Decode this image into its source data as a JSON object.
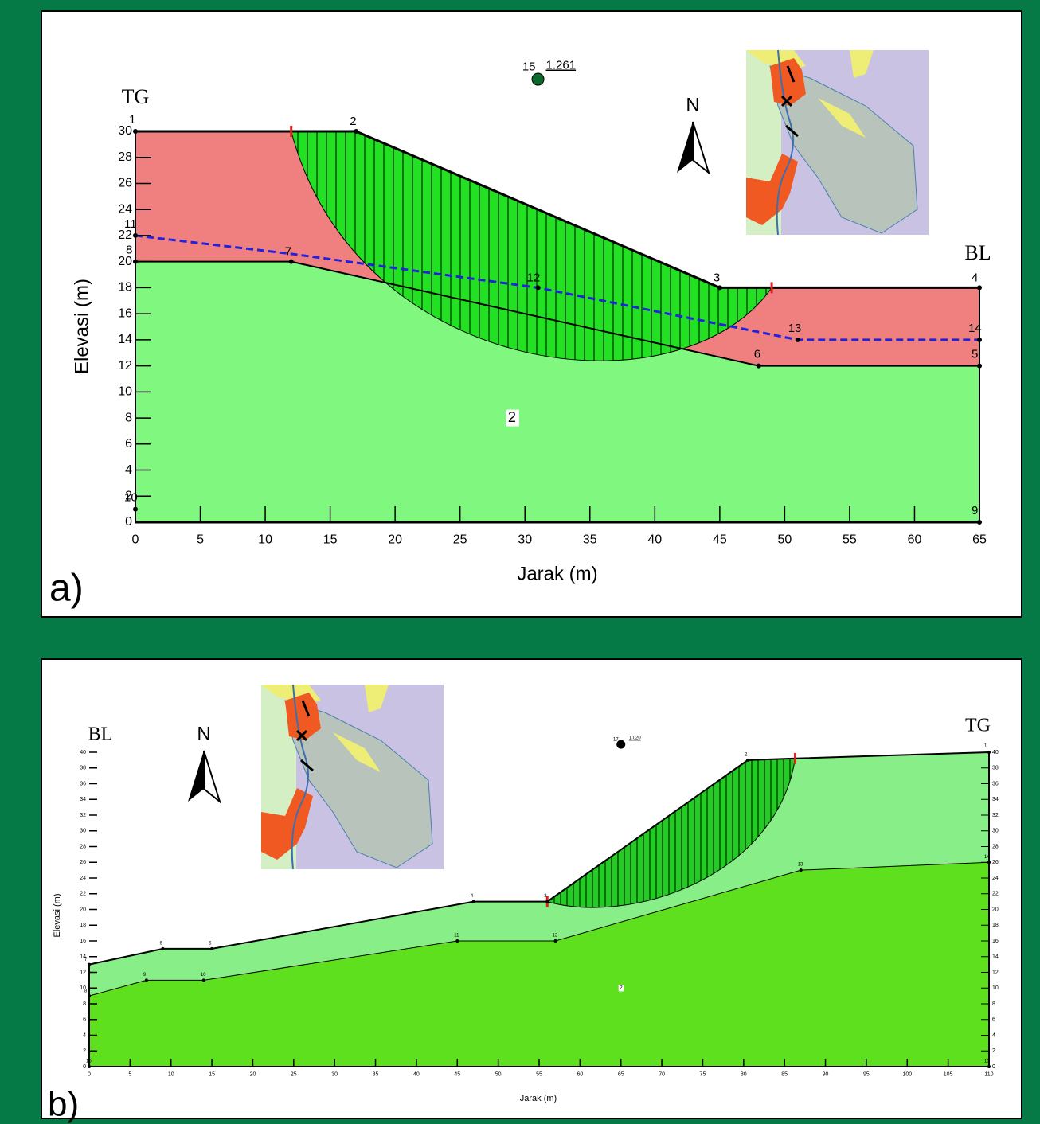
{
  "panels": [
    {
      "label": "a)",
      "left_label": "TG",
      "right_label": "BL",
      "north": "N",
      "x_axis_title": "Jarak (m)",
      "y_axis_title": "Elevasi (m)",
      "xticks": [
        0,
        5,
        10,
        15,
        20,
        25,
        30,
        35,
        40,
        45,
        50,
        55,
        60,
        65
      ],
      "yticks": [
        0,
        2,
        4,
        6,
        8,
        10,
        12,
        14,
        16,
        18,
        20,
        22,
        24,
        26,
        28,
        30
      ],
      "factor_of_safety": "1.261",
      "fos_point": "15",
      "material": "2",
      "points": [
        "1",
        "2",
        "3",
        "4",
        "5",
        "6",
        "7",
        "8",
        "9",
        "10",
        "11",
        "12",
        "13",
        "14"
      ]
    },
    {
      "label": "b)",
      "left_label": "BL",
      "right_label": "TG",
      "north": "N",
      "x_axis_title": "Jarak (m)",
      "y_axis_title": "Elevasi (m)",
      "xticks": [
        0,
        5,
        10,
        15,
        20,
        25,
        30,
        35,
        40,
        45,
        50,
        55,
        60,
        65,
        70,
        75,
        80,
        85,
        90,
        95,
        100,
        105,
        110
      ],
      "yticks": [
        0,
        2,
        4,
        6,
        8,
        10,
        12,
        14,
        16,
        18,
        20,
        22,
        24,
        26,
        28,
        30,
        32,
        34,
        36,
        38,
        40
      ],
      "factor_of_safety": "1.020",
      "fos_point": "17",
      "material": "2",
      "points": [
        "1",
        "2",
        "3",
        "4",
        "5",
        "6",
        "7",
        "8",
        "9",
        "10",
        "11",
        "12",
        "13",
        "14",
        "15",
        "16"
      ]
    }
  ]
}
